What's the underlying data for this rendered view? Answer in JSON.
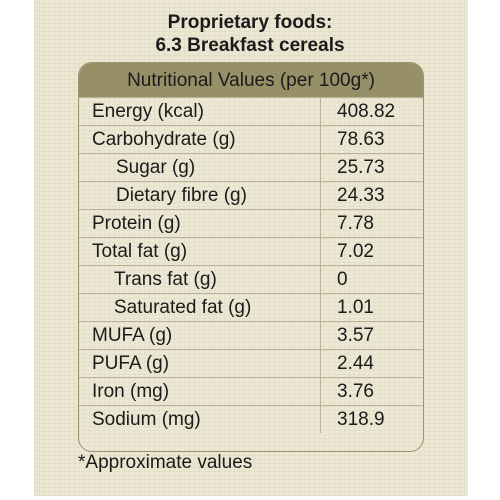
{
  "title": {
    "line1": "Proprietary foods:",
    "line2": "6.3 Breakfast cereals"
  },
  "table": {
    "header": "Nutritional Values (per 100g*)",
    "rows": [
      {
        "label": "Energy (kcal)",
        "value": "408.82"
      },
      {
        "label": "Carbohydrate (g)",
        "value": "78.63"
      },
      {
        "label": "Sugar (g)",
        "value": "25.73"
      },
      {
        "label": "Dietary fibre (g)",
        "value": "24.33"
      },
      {
        "label": "Protein (g)",
        "value": "7.78"
      },
      {
        "label": "Total fat (g)",
        "value": "7.02"
      },
      {
        "label": "Trans fat (g)",
        "value": "0"
      },
      {
        "label": "Saturated fat (g)",
        "value": "1.01"
      },
      {
        "label": "MUFA (g)",
        "value": "3.57"
      },
      {
        "label": "PUFA (g)",
        "value": "2.44"
      },
      {
        "label": "Iron (mg)",
        "value": "3.76"
      },
      {
        "label": "Sodium (mg)",
        "value": "318.9"
      }
    ]
  },
  "footnote": "*Approximate values",
  "colors": {
    "background": "#ebe7d2",
    "header_band": "#978f67",
    "text": "#1b1b1b"
  }
}
